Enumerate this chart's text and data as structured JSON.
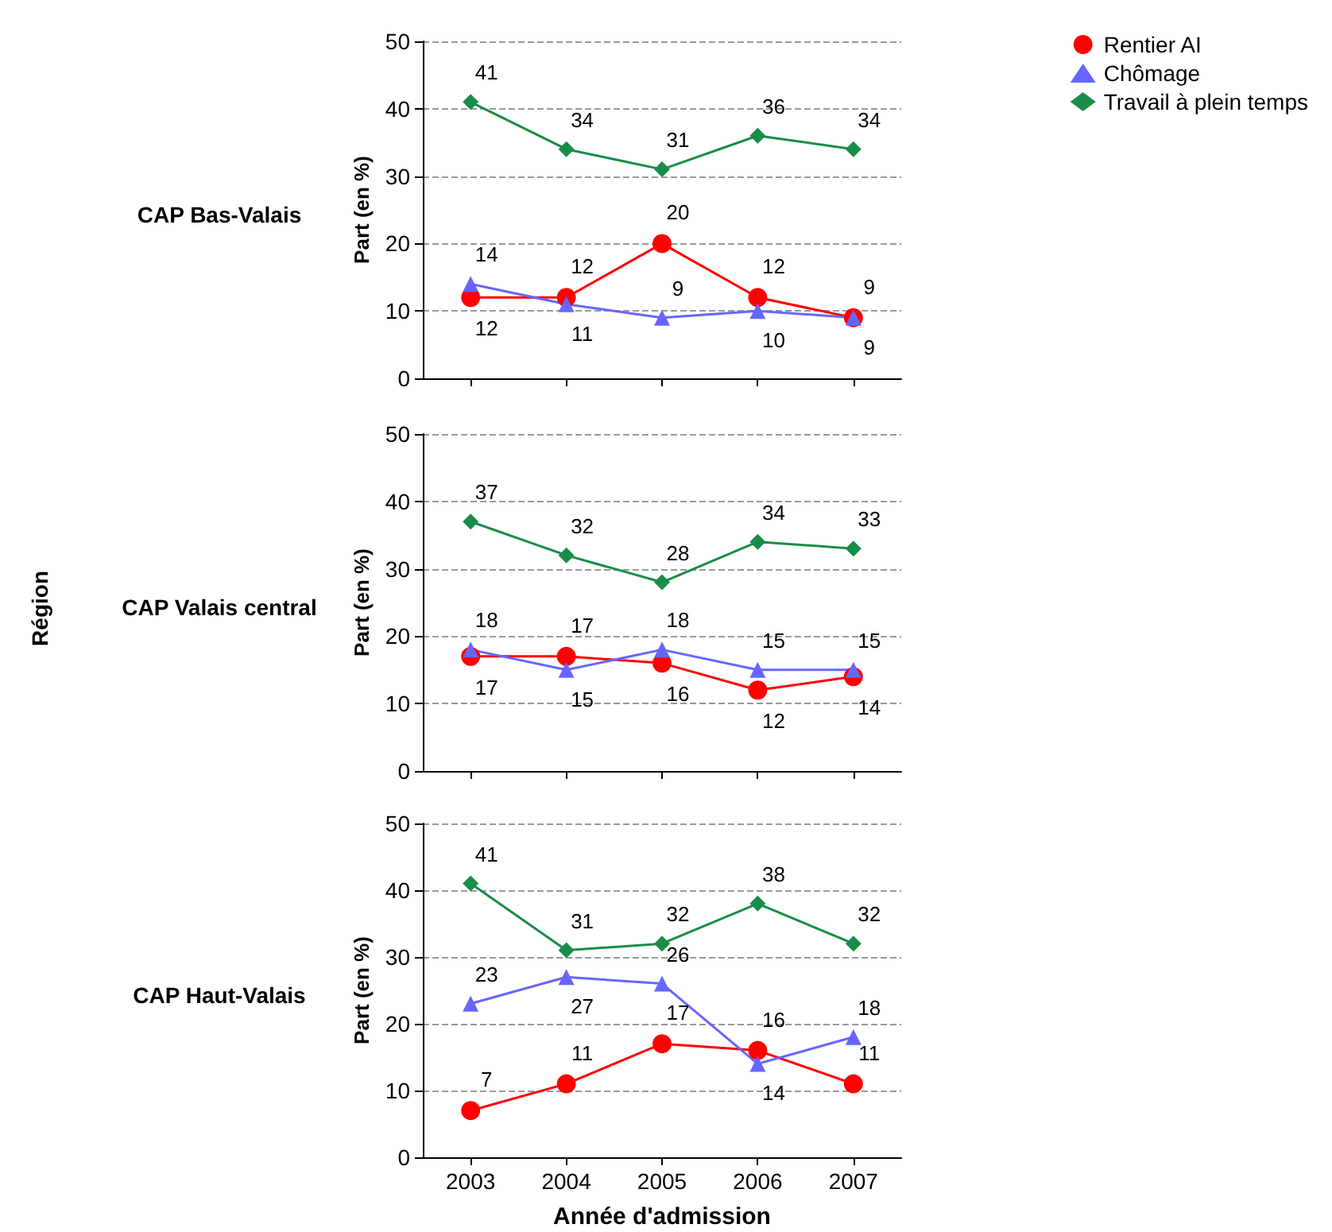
{
  "chart_data": [
    {
      "type": "line",
      "title": "CAP Bas-Valais",
      "ylabel": "Part (en %)",
      "categories": [
        "2003",
        "2004",
        "2005",
        "2006",
        "2007"
      ],
      "ylim": [
        0,
        50
      ],
      "yticks": [
        0,
        10,
        20,
        30,
        40,
        50
      ],
      "grid": "y",
      "legend": "top right",
      "tick_labels": "y",
      "data_labels": true,
      "series": [
        {
          "name": "Rentier AI",
          "color": "#ff0000",
          "marker": "circle",
          "values": [
            12,
            12,
            20,
            12,
            9
          ]
        },
        {
          "name": "Chômage",
          "color": "#6666ff",
          "marker": "triangle",
          "values": [
            14,
            11,
            9,
            10,
            9
          ]
        },
        {
          "name": "Travail à plein temps",
          "color": "#1a8c4a",
          "marker": "diamond",
          "values": [
            41,
            34,
            31,
            36,
            34
          ]
        }
      ]
    },
    {
      "type": "line",
      "title": "CAP Valais central",
      "ylabel": "Part (en %)",
      "annotations": [
        "Région"
      ],
      "categories": [
        "2003",
        "2004",
        "2005",
        "2006",
        "2007"
      ],
      "ylim": [
        0,
        50
      ],
      "yticks": [
        0,
        10,
        20,
        30,
        40,
        50
      ],
      "grid": "y",
      "tick_labels": "y",
      "data_labels": true,
      "series": [
        {
          "color": "#ff0000",
          "marker": "circle",
          "values": [
            17,
            17,
            16,
            12,
            14
          ]
        },
        {
          "color": "#6666ff",
          "marker": "triangle",
          "values": [
            18,
            15,
            18,
            15,
            15
          ]
        },
        {
          "color": "#1a8c4a",
          "marker": "diamond",
          "values": [
            37,
            32,
            28,
            34,
            33
          ]
        }
      ]
    },
    {
      "type": "line",
      "title": "CAP Haut-Valais",
      "ylabel": "Part (en %)",
      "xlabel": "Année d'admission",
      "categories": [
        "2003",
        "2004",
        "2005",
        "2006",
        "2007"
      ],
      "ylim": [
        0,
        50
      ],
      "yticks": [
        0,
        10,
        20,
        30,
        40,
        50
      ],
      "grid": "y",
      "data_labels": true,
      "series": [
        {
          "color": "#ff0000",
          "marker": "circle",
          "values": [
            7,
            11,
            17,
            16,
            11
          ]
        },
        {
          "color": "#6666ff",
          "marker": "triangle",
          "values": [
            23,
            27,
            26,
            14,
            18
          ]
        },
        {
          "color": "#1a8c4a",
          "marker": "diamond",
          "values": [
            41,
            31,
            32,
            38,
            32
          ]
        }
      ]
    }
  ]
}
